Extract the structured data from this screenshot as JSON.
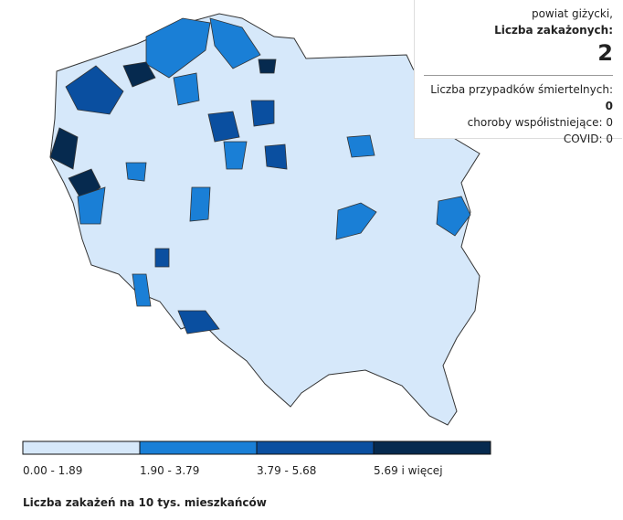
{
  "tooltip": {
    "region": "powiat giżycki,",
    "cases_label": "Liczba zakażonych:",
    "cases": "2",
    "deaths_label": "Liczba przypadków śmiertelnych:",
    "deaths": "0",
    "comorb_label": "choroby współistniejące:",
    "comorb": "0",
    "covid_label": "COVID:",
    "covid": "0"
  },
  "legend": {
    "title": "Liczba zakażeń na 10 tys. mieszkańców",
    "items": [
      {
        "label": "0.00 - 1.89",
        "color": "#d6e8fa"
      },
      {
        "label": "1.90 - 3.79",
        "color": "#1a7fd6"
      },
      {
        "label": "3.79 - 5.68",
        "color": "#0a4fa0"
      },
      {
        "label": "5.69 i więcej",
        "color": "#062a4f"
      }
    ]
  }
}
